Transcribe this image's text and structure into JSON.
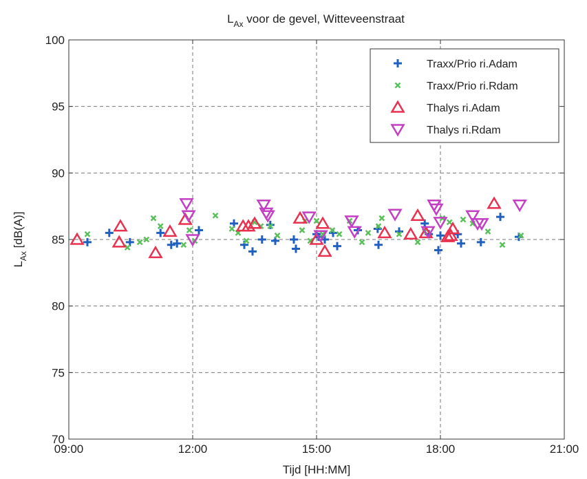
{
  "chart_data": {
    "type": "scatter",
    "title": {
      "main": "L",
      "sub": "Ax",
      "rest": " voor de gevel, Witteveenstraat"
    },
    "xlabel": "Tijd [HH:MM]",
    "ylabel": {
      "main": "L",
      "sub": "Ax",
      "rest": " [dB(A)]"
    },
    "xlim": [
      9,
      21
    ],
    "ylim": [
      70,
      100
    ],
    "xticks": [
      9,
      12,
      15,
      18,
      21
    ],
    "xtick_labels": [
      "09:00",
      "12:00",
      "15:00",
      "18:00",
      "21:00"
    ],
    "yticks": [
      70,
      75,
      80,
      85,
      90,
      95,
      100
    ],
    "ytick_labels": [
      "70",
      "75",
      "80",
      "85",
      "90",
      "95",
      "100"
    ],
    "grid": true,
    "legend_position": "top-right",
    "series": [
      {
        "name": "Traxx/Prio ri.Adam",
        "marker": "plus",
        "color": "#1f5fbf",
        "x": [
          9.45,
          9.98,
          10.48,
          11.22,
          11.48,
          11.62,
          12.15,
          13.0,
          13.25,
          13.45,
          13.68,
          13.88,
          14.0,
          14.45,
          14.5,
          15.0,
          15.05,
          15.2,
          15.4,
          15.5,
          16.0,
          16.48,
          16.5,
          17.0,
          17.62,
          17.72,
          17.95,
          18.0,
          18.42,
          18.5,
          18.98,
          19.45,
          19.9
        ],
        "y": [
          84.8,
          85.5,
          84.8,
          85.5,
          84.6,
          84.7,
          85.7,
          86.2,
          84.6,
          84.1,
          85.0,
          86.1,
          84.9,
          85.0,
          84.3,
          85.4,
          85.2,
          85.0,
          85.5,
          84.5,
          85.7,
          85.8,
          84.6,
          85.6,
          86.2,
          85.4,
          84.2,
          85.3,
          85.4,
          84.7,
          84.8,
          86.7,
          85.2
        ]
      },
      {
        "name": "Traxx/Prio ri.Rdam",
        "marker": "x",
        "color": "#5bbf5b",
        "x": [
          9.45,
          10.42,
          10.72,
          10.88,
          11.05,
          11.22,
          11.78,
          11.92,
          12.05,
          12.55,
          12.95,
          13.1,
          13.3,
          13.5,
          13.65,
          13.88,
          14.05,
          14.65,
          14.72,
          14.85,
          15.0,
          15.15,
          15.38,
          15.55,
          15.8,
          16.1,
          16.25,
          16.5,
          16.58,
          17.0,
          17.45,
          17.62,
          18.05,
          18.22,
          18.55,
          18.78,
          19.15,
          19.5,
          19.95
        ],
        "y": [
          85.4,
          84.4,
          84.8,
          85.0,
          86.6,
          86.0,
          84.6,
          85.7,
          84.9,
          86.8,
          85.8,
          85.5,
          84.9,
          86.3,
          86.0,
          86.0,
          85.3,
          85.7,
          86.4,
          84.9,
          86.4,
          85.4,
          85.7,
          85.4,
          86.4,
          84.8,
          85.5,
          86.0,
          86.6,
          85.4,
          84.8,
          85.6,
          86.6,
          86.3,
          86.5,
          86.2,
          85.6,
          84.6,
          85.3
        ]
      },
      {
        "name": "Thalys ri.Adam",
        "marker": "triangle-up",
        "color": "#e8304f",
        "x": [
          9.2,
          10.25,
          10.22,
          11.1,
          11.45,
          11.82,
          13.22,
          13.35,
          13.5,
          14.6,
          15.0,
          15.15,
          15.2,
          16.65,
          17.28,
          17.45,
          17.65,
          18.18,
          18.25,
          18.3,
          19.3
        ],
        "y": [
          85.0,
          86.0,
          84.8,
          84.0,
          85.6,
          86.5,
          86.0,
          86.0,
          86.2,
          86.6,
          85.0,
          86.2,
          84.1,
          85.5,
          85.4,
          86.8,
          85.5,
          85.2,
          85.3,
          85.8,
          87.7
        ]
      },
      {
        "name": "Thalys ri.Rdam",
        "marker": "triangle-down",
        "color": "#c33fc3",
        "x": [
          11.85,
          11.9,
          12.0,
          13.72,
          13.78,
          13.82,
          14.82,
          15.1,
          15.85,
          15.92,
          16.9,
          17.7,
          17.85,
          17.9,
          18.0,
          18.78,
          18.9,
          19.0,
          19.92
        ],
        "y": [
          87.7,
          86.8,
          85.0,
          87.6,
          87.0,
          86.8,
          86.7,
          85.3,
          86.4,
          85.6,
          86.9,
          85.6,
          87.6,
          87.3,
          86.3,
          86.8,
          86.2,
          86.2,
          87.6
        ]
      }
    ]
  }
}
